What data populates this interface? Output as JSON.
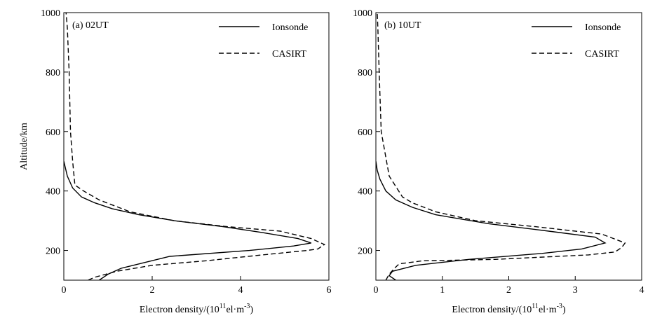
{
  "chart_data": [
    {
      "type": "line",
      "title": "",
      "panel_label": "(a) 02UT",
      "xlabel": "Electron density/(10",
      "xlabel_sup": "11",
      "xlabel_unit": "el·m",
      "xlabel_unit_sup": "-3",
      "xlabel_close": ")",
      "ylabel": "Altitude/km",
      "xlim": [
        0,
        6
      ],
      "ylim": [
        100,
        1000
      ],
      "xticks": [
        "0",
        "2",
        "4",
        "6"
      ],
      "yticks": [
        "200",
        "400",
        "600",
        "800",
        "1000"
      ],
      "legend_position": "top-right",
      "series": [
        {
          "name": "Ionsonde",
          "style": "solid",
          "x": [
            0.8,
            1.0,
            1.3,
            2.4,
            4.2,
            5.2,
            5.6,
            5.3,
            4.5,
            3.6,
            2.5,
            1.7,
            1.1,
            0.7,
            0.4,
            0.2,
            0.08,
            0.0
          ],
          "y": [
            100,
            120,
            140,
            180,
            200,
            215,
            225,
            240,
            260,
            280,
            300,
            320,
            340,
            360,
            380,
            410,
            450,
            500
          ]
        },
        {
          "name": "CASIRT",
          "style": "dashed",
          "x": [
            0.55,
            0.7,
            1.2,
            2.0,
            3.2,
            4.5,
            5.5,
            5.75,
            5.9,
            5.6,
            4.9,
            3.7,
            2.5,
            1.5,
            0.8,
            0.45,
            0.25,
            0.2,
            0.15,
            0.12,
            0.08,
            0.05
          ],
          "y": [
            100,
            110,
            130,
            150,
            165,
            185,
            200,
            205,
            220,
            240,
            265,
            280,
            300,
            330,
            370,
            400,
            420,
            500,
            600,
            800,
            950,
            1000
          ]
        }
      ]
    },
    {
      "type": "line",
      "title": "",
      "panel_label": "(b) 10UT",
      "xlabel": "Electron density/(10",
      "xlabel_sup": "11",
      "xlabel_unit": "el·m",
      "xlabel_unit_sup": "-3",
      "xlabel_close": ")",
      "ylabel": "",
      "xlim": [
        0,
        4
      ],
      "ylim": [
        100,
        1000
      ],
      "xticks": [
        "0",
        "1",
        "2",
        "3",
        "4"
      ],
      "yticks": [
        "200",
        "400",
        "600",
        "800",
        "1000"
      ],
      "legend_position": "top-right",
      "series": [
        {
          "name": "Ionsonde",
          "style": "solid",
          "x": [
            0.3,
            0.2,
            0.25,
            0.6,
            1.4,
            2.5,
            3.1,
            3.45,
            3.3,
            2.6,
            1.7,
            0.9,
            0.55,
            0.3,
            0.15,
            0.06,
            0.02,
            0.0
          ],
          "y": [
            100,
            115,
            130,
            150,
            170,
            190,
            205,
            225,
            245,
            265,
            290,
            320,
            345,
            370,
            400,
            440,
            470,
            500
          ]
        },
        {
          "name": "CASIRT",
          "style": "dashed",
          "x": [
            0.15,
            0.2,
            0.28,
            0.35,
            0.7,
            1.8,
            3.2,
            3.6,
            3.7,
            3.75,
            3.4,
            2.4,
            1.5,
            0.9,
            0.55,
            0.4,
            0.2,
            0.12,
            0.08,
            0.05,
            0.03,
            0.02
          ],
          "y": [
            100,
            120,
            140,
            155,
            165,
            170,
            185,
            195,
            210,
            225,
            255,
            280,
            300,
            330,
            360,
            380,
            450,
            550,
            600,
            800,
            950,
            1000
          ]
        }
      ]
    }
  ]
}
